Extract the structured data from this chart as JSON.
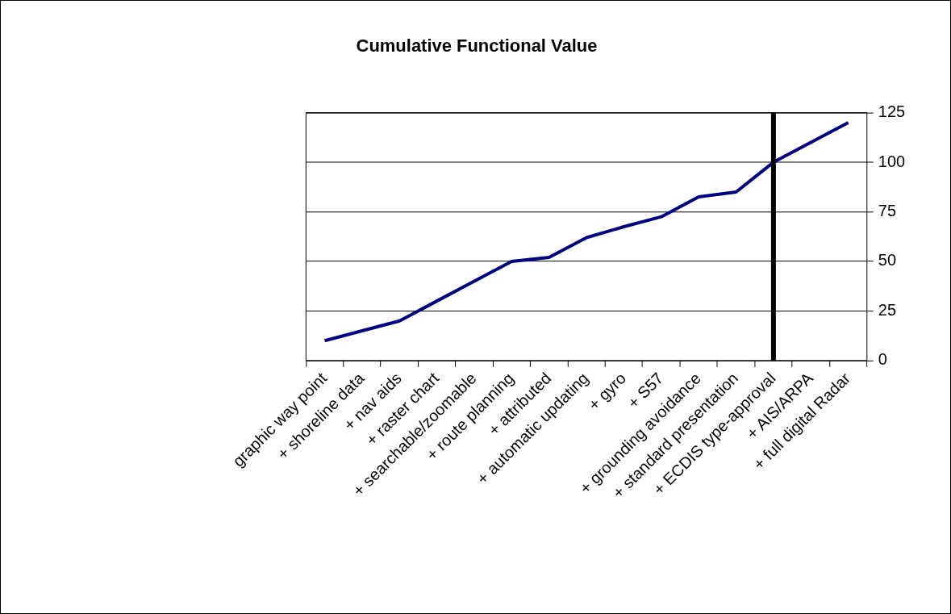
{
  "chart_data": {
    "type": "line",
    "title": "Cumulative Functional Value",
    "categories": [
      "graphic way point",
      "+ shoreline data",
      "+ nav aids",
      "+ raster chart",
      "+ searchable/zoomable",
      "+ route planning",
      "+ attributed",
      "+ automatic updating",
      "+ gyro",
      "+ S57",
      "+ grounding avoidance",
      "+ standard presentation",
      "+ ECDIS type-approval",
      "+ AIS/ARPA",
      "+ full digital Radar"
    ],
    "series": [
      {
        "color": "#000080",
        "values": [
          10,
          15,
          20,
          30,
          40,
          50,
          52,
          62,
          67.5,
          72.5,
          82.5,
          85,
          100,
          110,
          120
        ]
      }
    ],
    "ylim": [
      0,
      125
    ],
    "yticks": [
      0,
      25,
      50,
      75,
      100,
      125
    ],
    "grid": "y",
    "legend": false,
    "marker": "none",
    "line_style": "solid",
    "ref_lines": [
      {
        "axis": "x",
        "value": "+ ECDIS type-approval",
        "color": "#000000"
      }
    ]
  }
}
